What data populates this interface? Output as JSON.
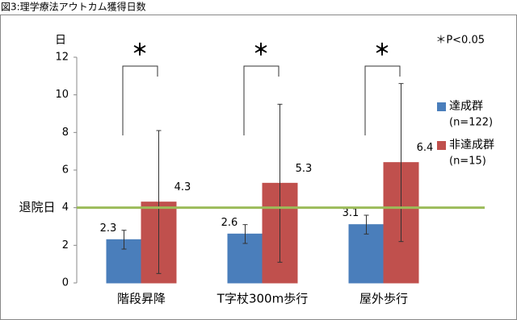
{
  "chart_data": {
    "type": "bar",
    "title": "図3:理学療法アウトカム獲得日数",
    "y_label": "日",
    "categories": [
      "階段昇降",
      "T字杖300m歩行",
      "屋外歩行"
    ],
    "series": [
      {
        "name": "達成群",
        "n_label": "(n=122)",
        "color": "#4a7ebb",
        "values": [
          2.3,
          2.6,
          3.1
        ],
        "errors": [
          0.5,
          0.5,
          0.5
        ]
      },
      {
        "name": "非達成群",
        "n_label": "(n=15)",
        "color": "#c0504d",
        "values": [
          4.3,
          5.3,
          6.4
        ],
        "errors": [
          3.8,
          4.2,
          4.2
        ]
      }
    ],
    "ylim": [
      0,
      12
    ],
    "yticks": [
      0,
      2,
      4,
      6,
      8,
      10,
      12
    ],
    "reference_line": {
      "value": 4,
      "label": "退院日",
      "color": "#9bbb59"
    },
    "significance_marks": [
      "＊",
      "＊",
      "＊"
    ],
    "significance_note": "＊P<0.05",
    "legend": "right"
  }
}
